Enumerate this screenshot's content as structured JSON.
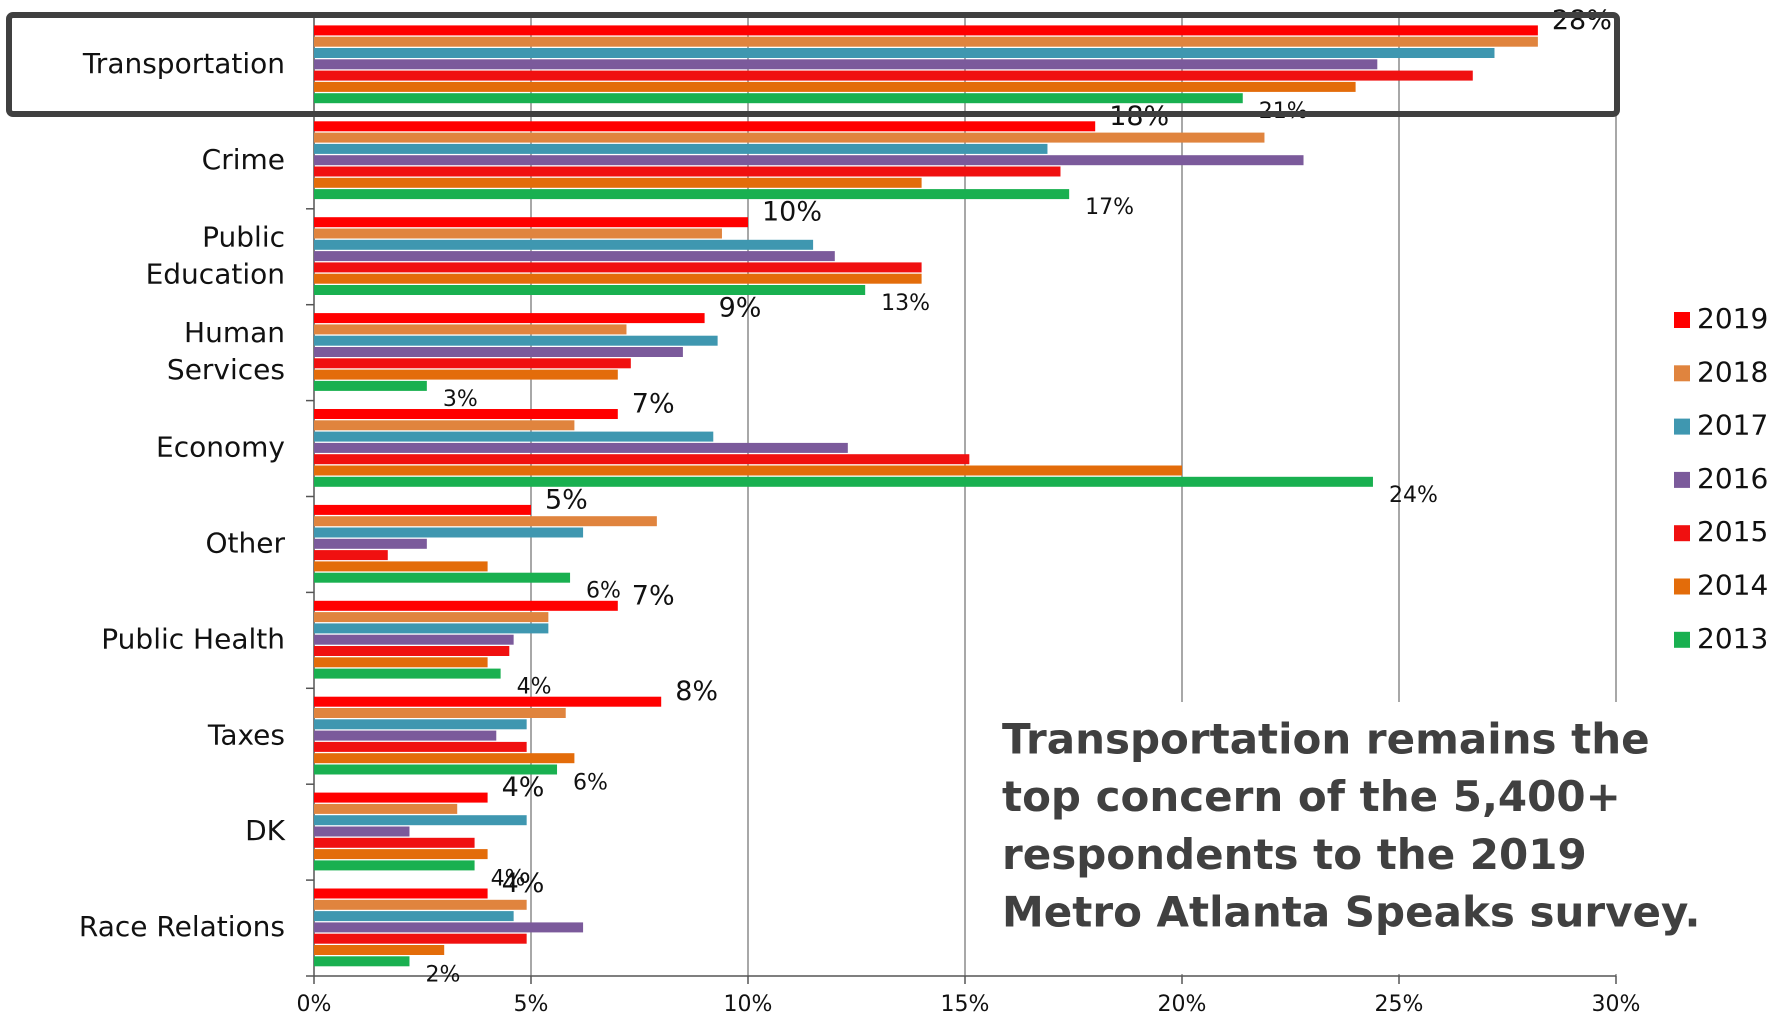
{
  "chart_data": {
    "type": "hbar",
    "categories": [
      "Transportation",
      "Crime",
      "Public\nEducation",
      "Human\nServices",
      "Economy",
      "Other",
      "Public Health",
      "Taxes",
      "DK",
      "Race Relations"
    ],
    "series": [
      {
        "name": "2019",
        "color": "#ff0000",
        "values": [
          28.2,
          18.0,
          10.0,
          9.0,
          7.0,
          5.0,
          7.0,
          8.0,
          4.0,
          4.0
        ],
        "value_labels": [
          "28%",
          "18%",
          "10%",
          "9%",
          "7%",
          "5%",
          "7%",
          "8%",
          "4%",
          "4%"
        ]
      },
      {
        "name": "2018",
        "color": "#e0843e",
        "values": [
          28.2,
          21.9,
          9.4,
          7.2,
          6.0,
          7.9,
          5.4,
          5.8,
          3.3,
          4.9
        ]
      },
      {
        "name": "2017",
        "color": "#3f97b0",
        "values": [
          27.2,
          16.9,
          11.5,
          9.3,
          9.2,
          6.2,
          5.4,
          4.9,
          4.9,
          4.6
        ]
      },
      {
        "name": "2016",
        "color": "#7b5a9b",
        "values": [
          24.5,
          22.8,
          12.0,
          8.5,
          12.3,
          2.6,
          4.6,
          4.2,
          2.2,
          6.2
        ]
      },
      {
        "name": "2015",
        "color": "#f01010",
        "values": [
          26.7,
          17.2,
          14.0,
          7.3,
          15.1,
          1.7,
          4.5,
          4.9,
          3.7,
          4.9
        ]
      },
      {
        "name": "2014",
        "color": "#e36c0a",
        "values": [
          24.0,
          14.0,
          14.0,
          7.0,
          20.0,
          4.0,
          4.0,
          6.0,
          4.0,
          3.0
        ]
      },
      {
        "name": "2013",
        "color": "#19b050",
        "values": [
          21.4,
          17.4,
          12.7,
          2.6,
          24.4,
          5.9,
          4.3,
          5.6,
          3.7,
          2.2
        ],
        "value_labels": [
          "21%",
          "17%",
          "13%",
          "3%",
          "24%",
          "6%",
          "4%",
          "6%",
          "4%",
          "2%"
        ]
      }
    ],
    "xlim": [
      0,
      30
    ],
    "xticks": [
      {
        "value": 0,
        "label": "0%"
      },
      {
        "value": 5,
        "label": "5%"
      },
      {
        "value": 10,
        "label": "10%"
      },
      {
        "value": 15,
        "label": "15%"
      },
      {
        "value": 20,
        "label": "20%"
      },
      {
        "value": 25,
        "label": "25%"
      },
      {
        "value": 30,
        "label": "30%"
      }
    ],
    "grid": true,
    "legend": "right",
    "annotation": [
      "Transportation remains the",
      "top concern of the 5,400+",
      "respondents to the 2019",
      "Metro Atlanta Speaks survey."
    ]
  }
}
